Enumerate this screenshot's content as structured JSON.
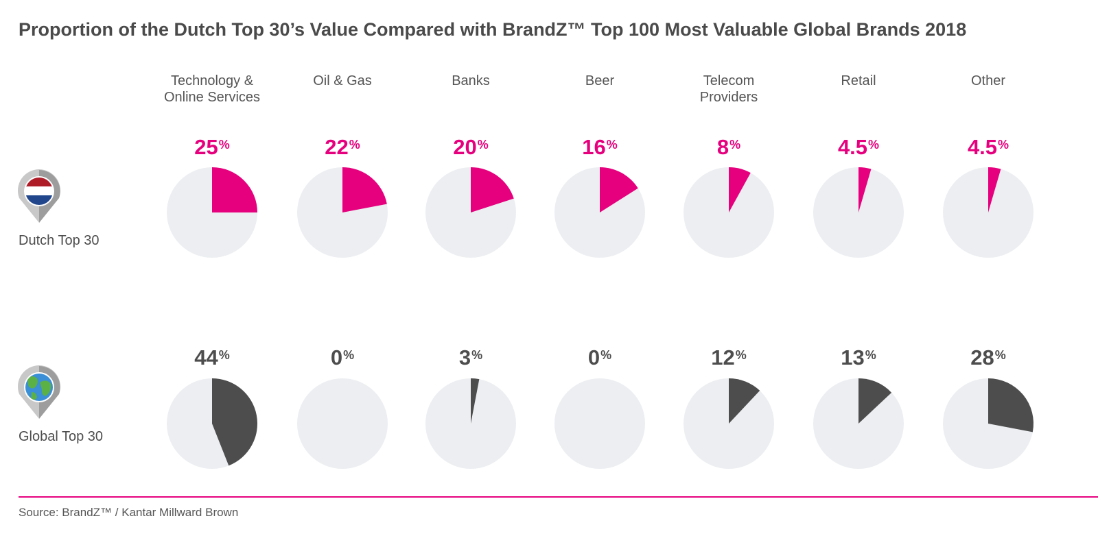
{
  "title": "Proportion of the Dutch Top 30’s Value Compared with BrandZ™ Top 100 Most Valuable Global Brands 2018",
  "rows": [
    {
      "label": "Dutch Top 30",
      "icon": "netherlands-flag-pin-icon"
    },
    {
      "label": "Global Top 30",
      "icon": "globe-pin-icon"
    }
  ],
  "colors": {
    "dutch": "#e6007e",
    "global": "#4d4d4d",
    "pie_background": "#eceef1",
    "rule": "#e6007e"
  },
  "chart_data": {
    "type": "pie",
    "categories": [
      [
        "Technology &",
        "Online Services"
      ],
      [
        "Oil & Gas"
      ],
      [
        "Banks"
      ],
      [
        "Beer"
      ],
      [
        "Telecom",
        "Providers"
      ],
      [
        "Retail"
      ],
      [
        "Other"
      ]
    ],
    "series": [
      {
        "name": "Dutch Top 30",
        "values": [
          25,
          22,
          20,
          16,
          8,
          4.5,
          4.5
        ],
        "labels": [
          "25",
          "22",
          "20",
          "16",
          "8",
          "4.5",
          "4.5"
        ],
        "unit": "%"
      },
      {
        "name": "Global Top 30",
        "values": [
          44,
          0,
          3,
          0,
          12,
          13,
          28
        ],
        "labels": [
          "44",
          "0",
          "3",
          "0",
          "12",
          "13",
          "28"
        ],
        "unit": "%"
      }
    ]
  },
  "source": "Source: BrandZ™ / Kantar Millward Brown"
}
